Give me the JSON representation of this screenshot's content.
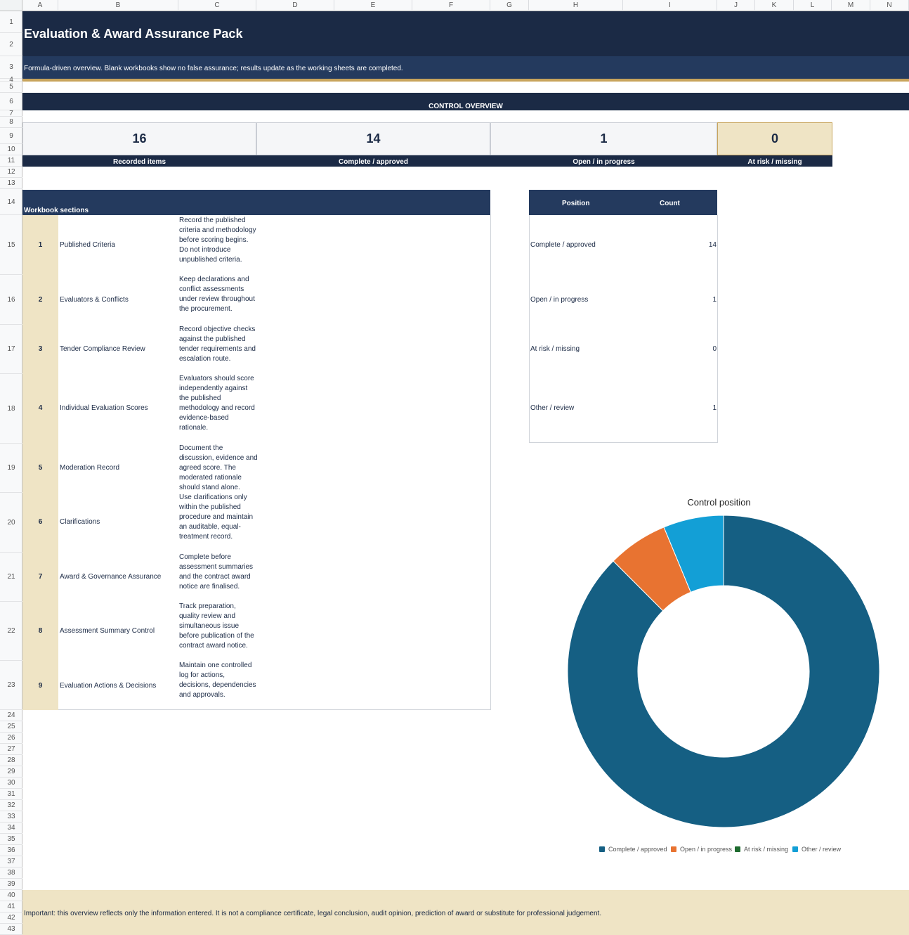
{
  "columns": [
    "A",
    "B",
    "C",
    "D",
    "E",
    "F",
    "G",
    "H",
    "I",
    "J",
    "K",
    "L",
    "M",
    "N"
  ],
  "rows": [
    "1",
    "2",
    "3",
    "4",
    "5",
    "6",
    "7",
    "8",
    "9",
    "10",
    "11",
    "12",
    "13",
    "14",
    "15",
    "16",
    "17",
    "18",
    "19",
    "20",
    "21",
    "22",
    "23",
    "24",
    "25",
    "26",
    "27",
    "28",
    "29",
    "30",
    "31",
    "32",
    "33",
    "34",
    "35",
    "36",
    "37",
    "38",
    "39",
    "40",
    "41",
    "42",
    "43"
  ],
  "header": {
    "title": "Evaluation & Award Assurance Pack",
    "subtitle": "Formula-driven overview. Blank workbooks show no false assurance; results update as the working sheets are completed."
  },
  "overview": {
    "heading": "CONTROL OVERVIEW",
    "kpis": [
      {
        "value": "16",
        "label": "Recorded items"
      },
      {
        "value": "14",
        "label": "Complete / approved"
      },
      {
        "value": "1",
        "label": "Open / in progress"
      },
      {
        "value": "0",
        "label": "At risk / missing"
      }
    ]
  },
  "sections": {
    "heading": "Workbook sections",
    "items": [
      {
        "num": "1",
        "name": "Published Criteria",
        "desc": "Record the published criteria and methodology before scoring begins. Do not introduce unpublished criteria."
      },
      {
        "num": "2",
        "name": "Evaluators & Conflicts",
        "desc": "Keep declarations and conflict assessments under review throughout the procurement."
      },
      {
        "num": "3",
        "name": "Tender Compliance Review",
        "desc": "Record objective checks against the published tender requirements and escalation route."
      },
      {
        "num": "4",
        "name": "Individual Evaluation Scores",
        "desc": "Evaluators should score independently against the published methodology and record evidence-based rationale."
      },
      {
        "num": "5",
        "name": "Moderation Record",
        "desc": "Document the discussion, evidence and agreed score. The moderated rationale should stand alone."
      },
      {
        "num": "6",
        "name": "Clarifications",
        "desc": "Use clarifications only within the published procedure and maintain an auditable, equal-treatment record."
      },
      {
        "num": "7",
        "name": "Award & Governance Assurance",
        "desc": "Complete before assessment summaries and the contract award notice are finalised."
      },
      {
        "num": "8",
        "name": "Assessment Summary Control",
        "desc": "Track preparation, quality review and simultaneous issue before publication of the contract award notice."
      },
      {
        "num": "9",
        "name": "Evaluation Actions & Decisions",
        "desc": "Maintain one controlled log for actions, decisions, dependencies and approvals."
      }
    ]
  },
  "position_table": {
    "col_position": "Position",
    "col_count": "Count",
    "rows": [
      {
        "label": "Complete / approved",
        "count": "14"
      },
      {
        "label": "Open / in progress",
        "count": "1"
      },
      {
        "label": "At risk / missing",
        "count": "0"
      },
      {
        "label": "Other / review",
        "count": "1"
      }
    ]
  },
  "chart_data": {
    "type": "pie",
    "donut": true,
    "title": "Control position",
    "categories": [
      "Complete / approved",
      "Open / in progress",
      "At risk / missing",
      "Other / review"
    ],
    "values": [
      14,
      1,
      0,
      1
    ],
    "colors": [
      "#155f83",
      "#e87331",
      "#1e6b2f",
      "#139fd6"
    ],
    "legend": "bottom"
  },
  "note": "Important: this overview reflects only the information entered. It is not a compliance certificate, legal conclusion, audit opinion, prediction of award or substitute for professional judgement."
}
